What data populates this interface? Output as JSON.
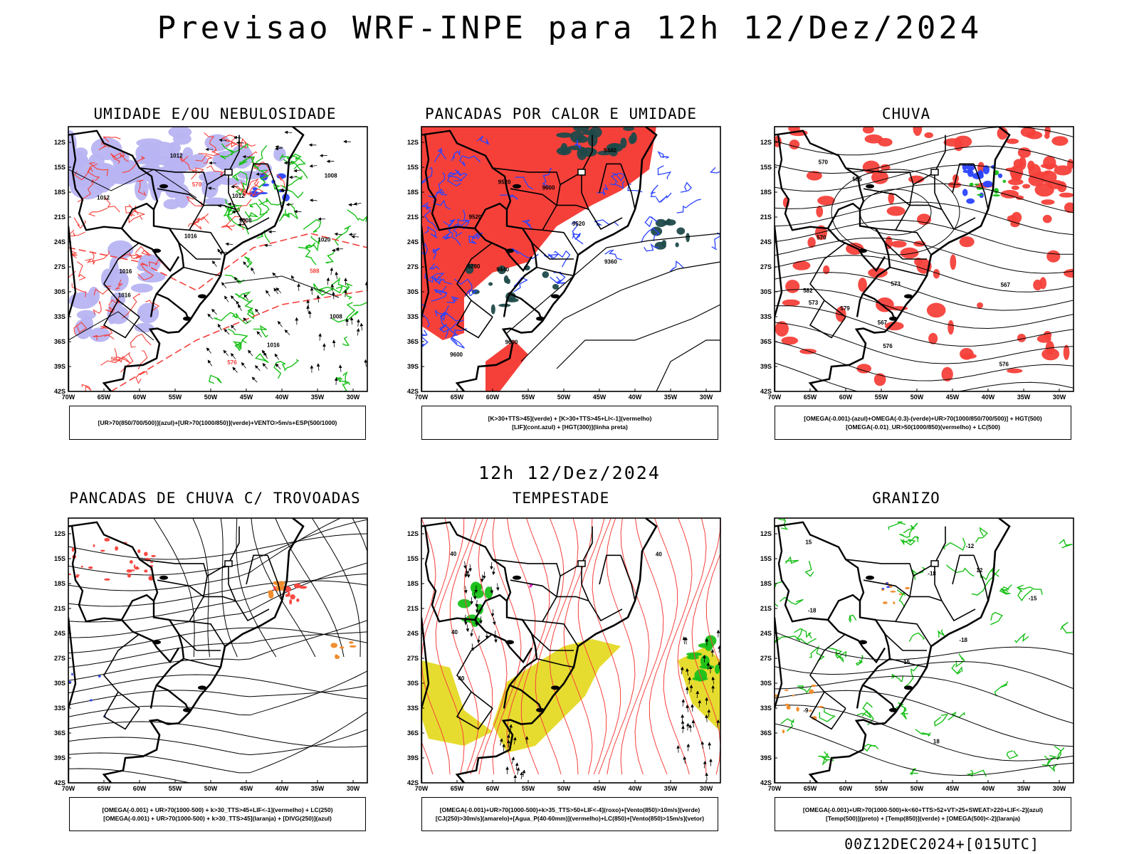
{
  "page": {
    "title": "Previsao WRF-INPE  para 12h 12/Dez/2024",
    "mid_label": "12h 12/Dez/2024",
    "footer": "00Z12DEC2024+[015UTC]"
  },
  "axes": {
    "lat_labels": [
      "12S",
      "15S",
      "18S",
      "21S",
      "24S",
      "27S",
      "30S",
      "33S",
      "36S",
      "39S",
      "42S"
    ],
    "lon_labels": [
      "70W",
      "65W",
      "60W",
      "55W",
      "50W",
      "45W",
      "40W",
      "35W",
      "30W"
    ]
  },
  "colors": {
    "red": "#f5403a",
    "green": "#19c019",
    "blue": "#2a43ff",
    "lavender": "#b8b4f2",
    "dark_teal": "#1f4a4a",
    "yellow": "#e6dc30",
    "orange": "#f08a28",
    "magenta": "#e020c0"
  },
  "panels": [
    {
      "id": "umidade",
      "title": "UMIDADE E/OU NEBULOSIDADE",
      "legend": [
        "[UR>70(850/700/500)](azul)+[UR>70(1000/850)](verde)+VENTO>5m/s+ESP(500/1000)"
      ],
      "contour_labels": [
        "1012",
        "1012",
        "1012",
        "1008",
        "1016",
        "1016",
        "1016",
        "1008",
        "1020",
        "1016",
        "1008",
        "570",
        "576",
        "582",
        "588"
      ]
    },
    {
      "id": "pancadas",
      "title": "PANCADAS POR CALOR E UMIDADE",
      "legend": [
        "[K>30+TTS>45](verde) + [K>30+TTS>45+LI<-1](vermelho)",
        "[LIF](cont.azul) + [HGT(300)](linha preta)"
      ],
      "contour_labels": [
        "9600",
        "9600",
        "9600",
        "9520",
        "9440",
        "9520",
        "9520",
        "9440",
        "9360",
        "9280"
      ]
    },
    {
      "id": "chuva",
      "title": "CHUVA",
      "legend": [
        "[OMEGA(-0.001)-(azul)+OMEGA(-0.3)-(verde)+UR>70(1000/850/700/500)] + HGT(500)",
        "[OMEGA(-0.01)_UR>50(1000/850)(vermelho) + LC(500)"
      ],
      "contour_labels": [
        "582",
        "585",
        "579",
        "576",
        "573",
        "570",
        "567",
        "576",
        "573",
        "570",
        "567"
      ]
    },
    {
      "id": "trovoadas",
      "title": "PANCADAS DE CHUVA C/ TROVOADAS",
      "legend": [
        "[OMEGA(-0.001) + UR>70(1000-500) + k>30_TTS>45+LIF<-1](vermelho) + LC(250)",
        "[OMEGA(-0.001) + UR>70(1000-500) + k>30_TTS>45](laranja) + [DIVG(250)](azul)"
      ],
      "contour_labels": []
    },
    {
      "id": "tempestade",
      "title": "TEMPESTADE",
      "legend": [
        "[OMEGA(-0.001)+UR>70(1000-500)+k>35_TTS>50+LIF<-4](roxo)+[Vento(850)>10m/s](verde)",
        "[CJ(250)>30m/s](amarelo)+[Agua_P(40-60mm)](vermelho)+LC(850)+[Vento(850)>15m/s](vetor)"
      ],
      "contour_labels": [
        "40",
        "40",
        "40",
        "40"
      ]
    },
    {
      "id": "granizo",
      "title": "GRANIZO",
      "legend": [
        "[OMEGA(-0.001)+UR>70(1000-500)+k<60+TTS>52+VT>25+SWEAT>220+LIF<-2](azul)",
        "[Temp(500)](preto) + [Temp(850)](verde) + [OMEGA(500)<-2](laranja)"
      ],
      "contour_labels": [
        "-9",
        "-12",
        "-15",
        "-18",
        "-18",
        "-18",
        "12",
        "15",
        "18",
        "15"
      ]
    }
  ]
}
